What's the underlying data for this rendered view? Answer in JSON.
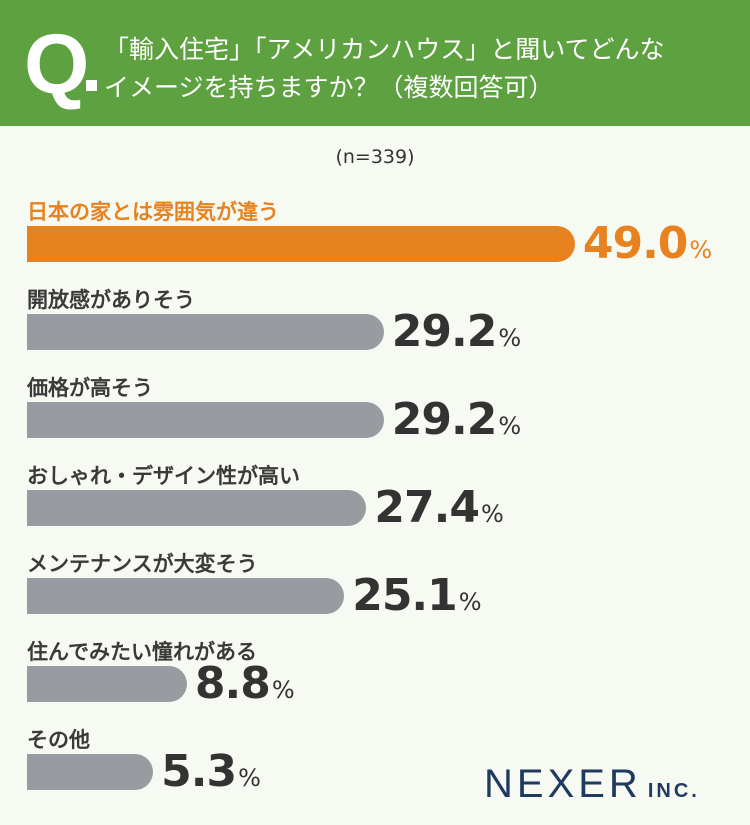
{
  "header": {
    "q_mark": "Q",
    "title_line1": "「輸入住宅」「アメリカンハウス」と聞いてどんな",
    "title_line2": "イメージを持ちますか？（複数回答可）"
  },
  "sample": "(n=339)",
  "logo": {
    "name": "NEXER",
    "suffix": "INC."
  },
  "colors": {
    "header": "#5ea140",
    "highlight": "#e8821e",
    "bar": "#9a9ba0"
  },
  "chart_data": {
    "type": "bar",
    "orientation": "horizontal",
    "title": "「輸入住宅」「アメリカンハウス」と聞いてどんなイメージを持ちますか？（複数回答可）",
    "unit": "%",
    "categories": [
      "日本の家とは雰囲気が違う",
      "開放感がありそう",
      "価格が高そう",
      "おしゃれ・デザイン性が高い",
      "メンテナンスが大変そう",
      "住んでみたい憧れがある",
      "その他"
    ],
    "values": [
      49.0,
      29.2,
      29.2,
      27.4,
      25.1,
      8.8,
      5.3
    ],
    "value_labels": [
      "49.0",
      "29.2",
      "29.2",
      "27.4",
      "25.1",
      "8.8",
      "5.3"
    ],
    "highlight_index": 0
  }
}
